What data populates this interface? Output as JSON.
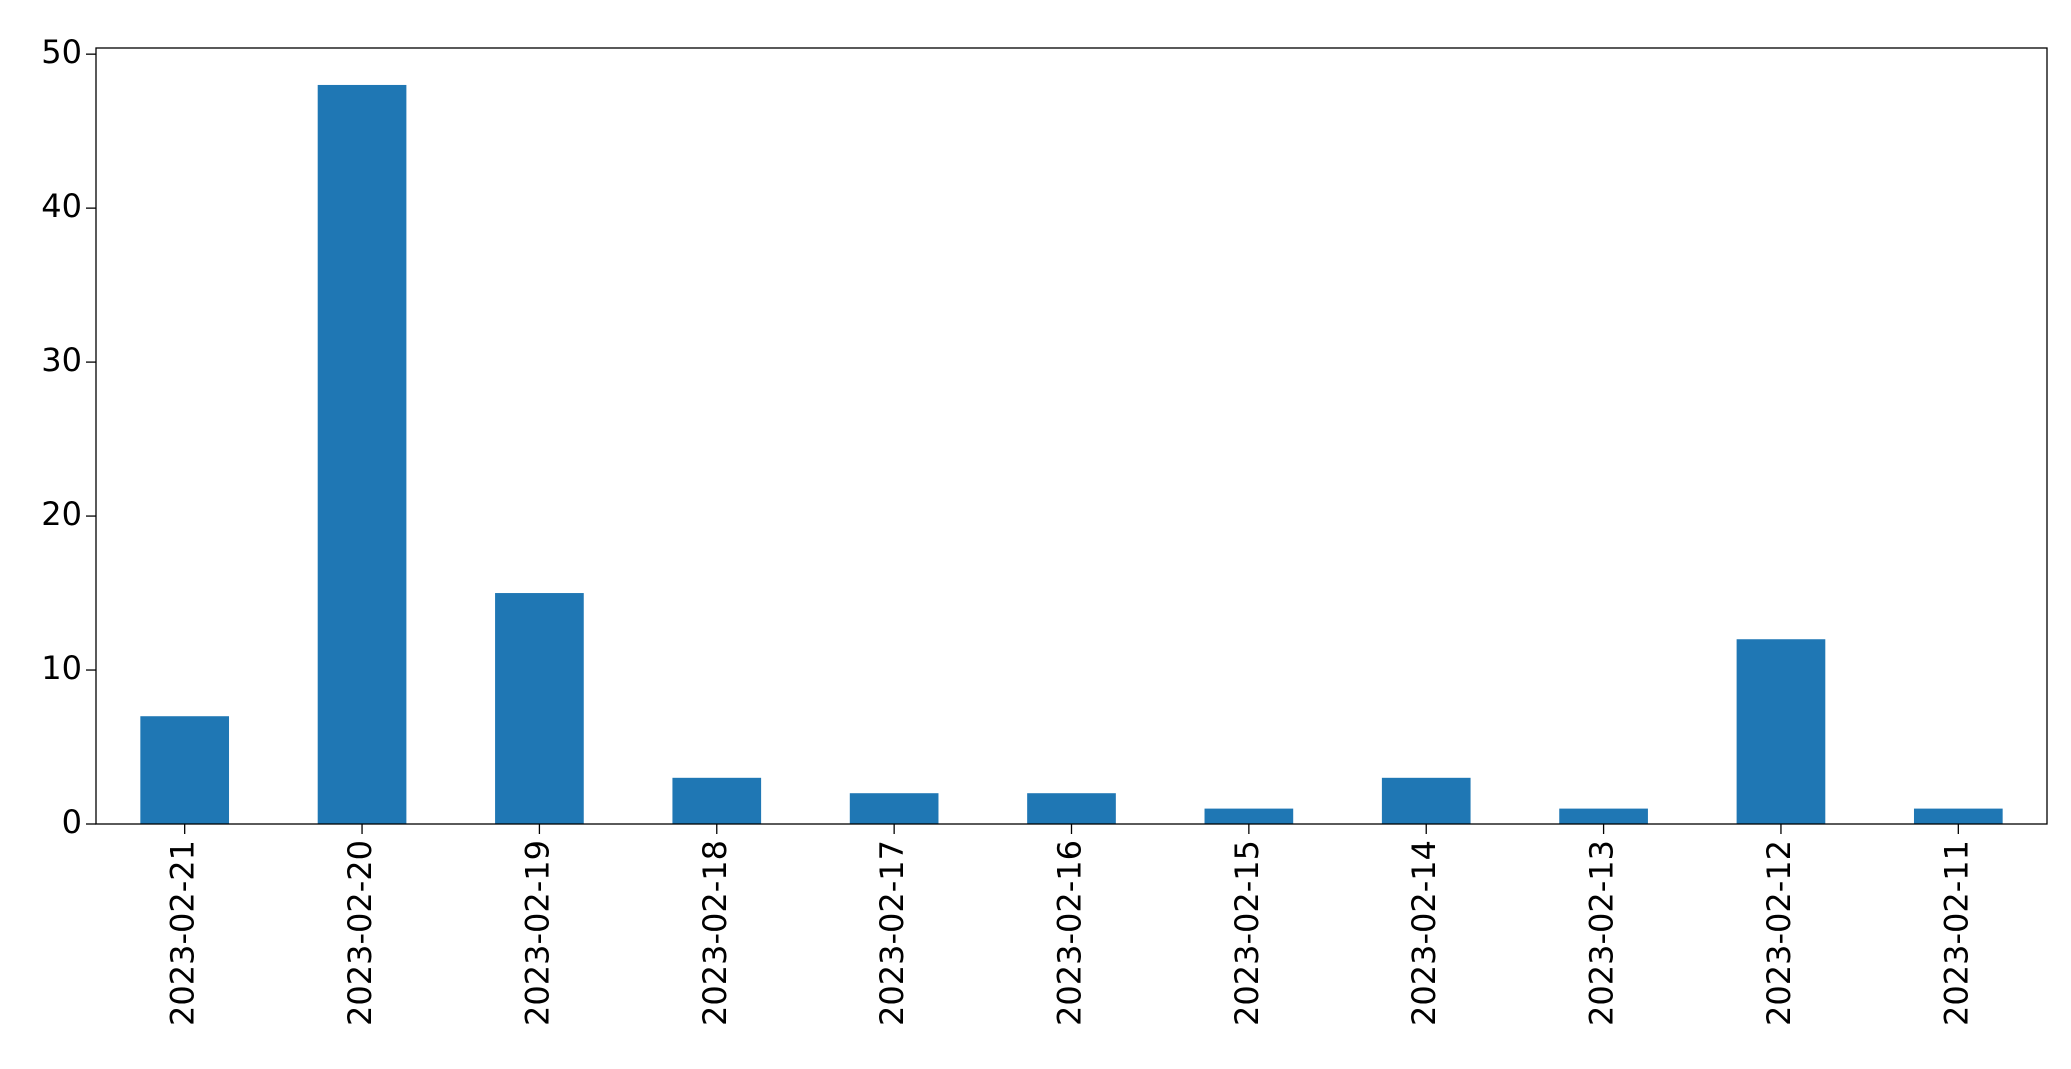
{
  "chart_data": {
    "type": "bar",
    "categories": [
      "2023-02-21",
      "2023-02-20",
      "2023-02-19",
      "2023-02-18",
      "2023-02-17",
      "2023-02-16",
      "2023-02-15",
      "2023-02-14",
      "2023-02-13",
      "2023-02-12",
      "2023-02-11"
    ],
    "values": [
      7,
      48,
      15,
      3,
      2,
      2,
      1,
      3,
      1,
      12,
      1
    ],
    "color": "#1f77b4",
    "ylim": [
      0,
      50.4
    ],
    "yticks": [
      0,
      10,
      20,
      30,
      40,
      50
    ],
    "grid": false
  }
}
